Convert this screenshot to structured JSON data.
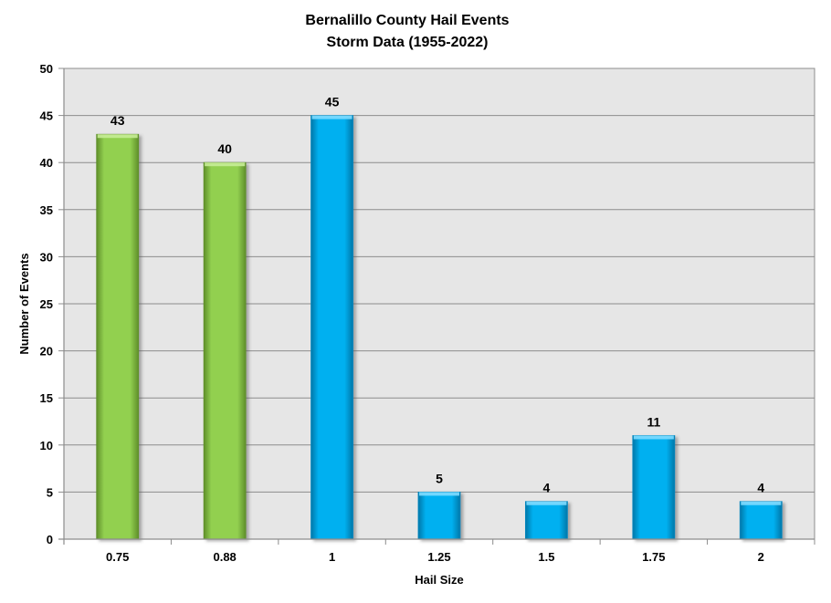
{
  "chart_data": {
    "type": "bar",
    "title": "Bernalillo County Hail Events",
    "subtitle": "Storm Data (1955-2022)",
    "xlabel": "Hail Size",
    "ylabel": "Number of Events",
    "categories": [
      "0.75",
      "0.88",
      "1",
      "1.25",
      "1.5",
      "1.75",
      "2"
    ],
    "values": [
      43,
      40,
      45,
      5,
      4,
      11,
      4
    ],
    "bar_colors": [
      "#92d050",
      "#92d050",
      "#00b0f0",
      "#00b0f0",
      "#00b0f0",
      "#00b0f0",
      "#00b0f0"
    ],
    "ylim": [
      0,
      50
    ],
    "yticks": [
      0,
      5,
      10,
      15,
      20,
      25,
      30,
      35,
      40,
      45,
      50
    ],
    "grid": true,
    "plot_background": "#e6e6e6",
    "data_labels": true
  }
}
